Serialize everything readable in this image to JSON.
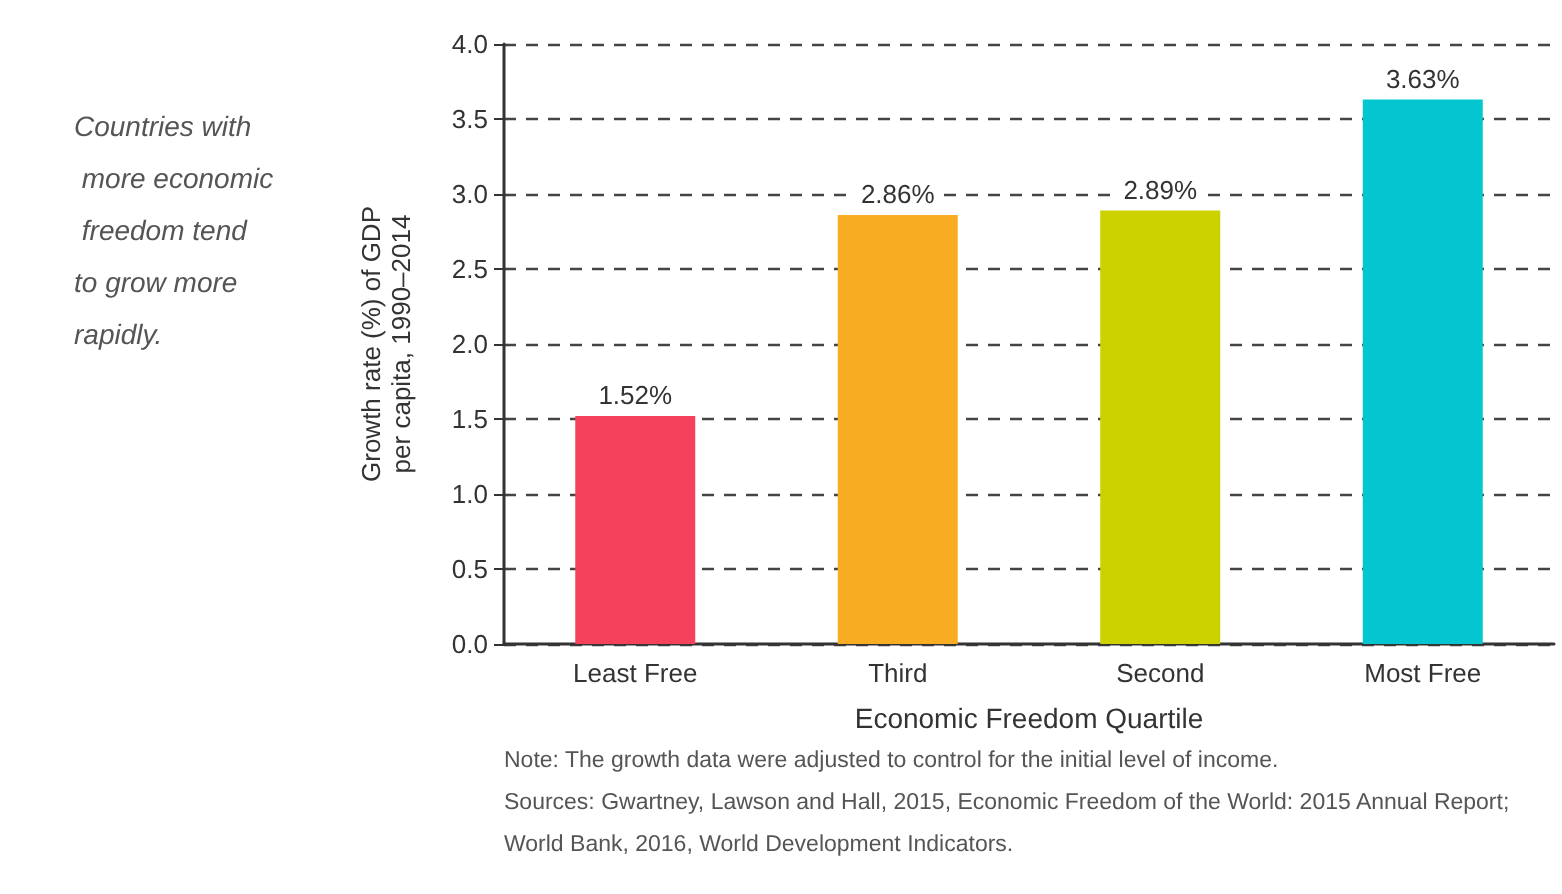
{
  "chart_data": {
    "type": "bar",
    "xlabel": "Economic Freedom Quartile",
    "ylabel": "Growth rate (%) of GDP\nper capita, 1990–2014",
    "categories": [
      "Least Free",
      "Third",
      "Second",
      "Most Free"
    ],
    "values": [
      1.52,
      2.86,
      2.89,
      3.63
    ],
    "colors": [
      "#f5425c",
      "#f8ac21",
      "#ccd100",
      "#04c6d0"
    ],
    "value_labels": [
      "1.52%",
      "2.86%",
      "2.89%",
      "3.63%"
    ],
    "ylim": [
      0,
      4
    ],
    "yticks": [
      {
        "value": 0,
        "label": "0.0"
      },
      {
        "value": 0.5,
        "label": "0.5"
      },
      {
        "value": 1,
        "label": "1.0"
      },
      {
        "value": 1.5,
        "label": "1.5"
      },
      {
        "value": 2,
        "label": "2.0"
      },
      {
        "value": 2.5,
        "label": "2.5"
      },
      {
        "value": 3,
        "label": "3.0"
      },
      {
        "value": 3.5,
        "label": "3.5"
      },
      {
        "value": 4,
        "label": "4.0"
      }
    ],
    "grid": "y",
    "annotations": [
      "Countries with more economic freedom tend to grow more rapidly.",
      "Note: The growth data were adjusted to control for the initial level of income.",
      "Sources: Gwartney, Lawson and Hall, 2015, Economic Freedom of the World: 2015 Annual Report; World Bank, 2016, World Development Indicators."
    ]
  }
}
